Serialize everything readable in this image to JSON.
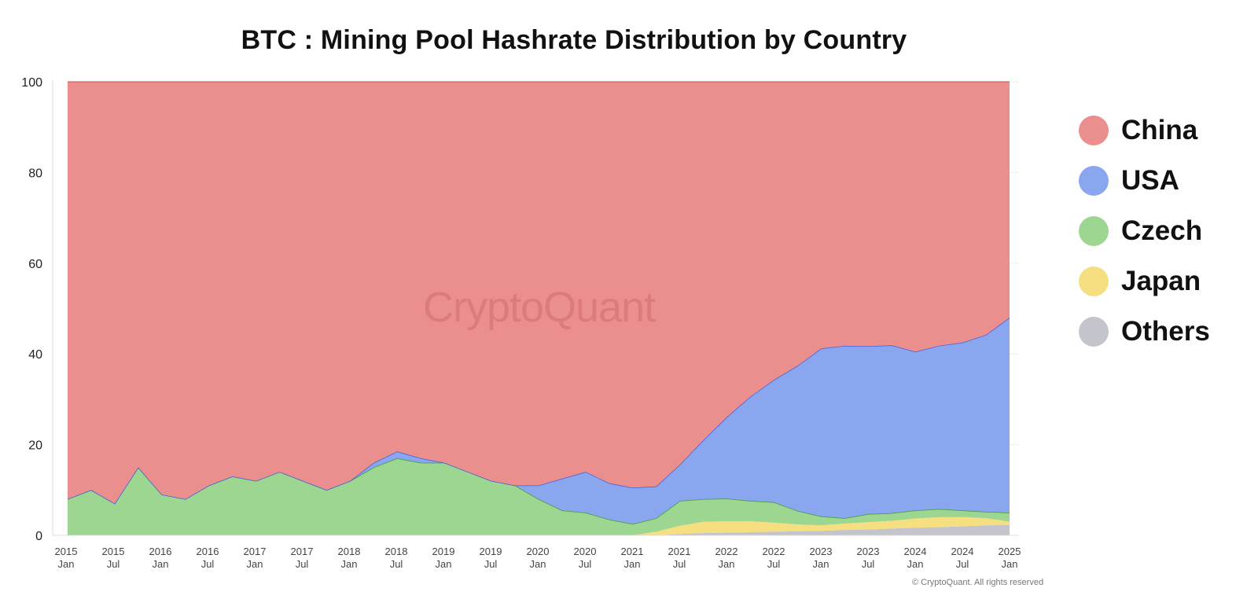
{
  "chart_data": {
    "type": "area",
    "stacked": true,
    "title": "BTC : Mining Pool Hashrate Distribution by Country",
    "xlabel": "",
    "ylabel": "",
    "ylim": [
      0,
      100
    ],
    "yticks": [
      0,
      20,
      40,
      60,
      80,
      100
    ],
    "xlim": [
      "2015-01",
      "2025-01"
    ],
    "grid": true,
    "legend_position": "right",
    "x_ticks": [
      {
        "year": "2015",
        "sub": "Jan"
      },
      {
        "year": "2015",
        "sub": "Jul"
      },
      {
        "year": "2016",
        "sub": "Jan"
      },
      {
        "year": "2016",
        "sub": "Jul"
      },
      {
        "year": "2017",
        "sub": "Jan"
      },
      {
        "year": "2017",
        "sub": "Jul"
      },
      {
        "year": "2018",
        "sub": "Jan"
      },
      {
        "year": "2018",
        "sub": "Jul"
      },
      {
        "year": "2019",
        "sub": "Jan"
      },
      {
        "year": "2019",
        "sub": "Jul"
      },
      {
        "year": "2020",
        "sub": "Jan"
      },
      {
        "year": "2020",
        "sub": "Jul"
      },
      {
        "year": "2021",
        "sub": "Jan"
      },
      {
        "year": "2021",
        "sub": "Jul"
      },
      {
        "year": "2022",
        "sub": "Jan"
      },
      {
        "year": "2022",
        "sub": "Jul"
      },
      {
        "year": "2023",
        "sub": "Jan"
      },
      {
        "year": "2023",
        "sub": "Jul"
      },
      {
        "year": "2024",
        "sub": "Jan"
      },
      {
        "year": "2024",
        "sub": "Jul"
      },
      {
        "year": "2025",
        "sub": "Jan"
      }
    ],
    "x": [
      "2015-01",
      "2015-04",
      "2015-07",
      "2015-10",
      "2016-01",
      "2016-04",
      "2016-07",
      "2016-10",
      "2017-01",
      "2017-04",
      "2017-07",
      "2017-10",
      "2018-01",
      "2018-04",
      "2018-07",
      "2018-10",
      "2019-01",
      "2019-04",
      "2019-07",
      "2019-10",
      "2020-01",
      "2020-04",
      "2020-07",
      "2020-10",
      "2021-01",
      "2021-04",
      "2021-07",
      "2021-10",
      "2022-01",
      "2022-04",
      "2022-07",
      "2022-10",
      "2023-01",
      "2023-04",
      "2023-07",
      "2023-10",
      "2024-01",
      "2024-04",
      "2024-07",
      "2024-10",
      "2025-01"
    ],
    "series": [
      {
        "name": "Others",
        "color": "#c4c4cc",
        "values": [
          0,
          0,
          0,
          0,
          0,
          0,
          0,
          0,
          0,
          0,
          0,
          0,
          0,
          0,
          0,
          0,
          0,
          0,
          0,
          0,
          0,
          0,
          0,
          0,
          0,
          0,
          0.3,
          0.5,
          0.6,
          0.7,
          0.8,
          0.9,
          1.0,
          1.2,
          1.3,
          1.5,
          1.7,
          1.8,
          2.0,
          2.2,
          2.3
        ]
      },
      {
        "name": "Japan",
        "color": "#f5df80",
        "values": [
          0,
          0,
          0,
          0,
          0,
          0,
          0,
          0,
          0,
          0,
          0,
          0,
          0,
          0,
          0,
          0,
          0,
          0,
          0,
          0,
          0,
          0,
          0,
          0,
          0,
          0.8,
          1.8,
          2.5,
          2.5,
          2.4,
          2.0,
          1.5,
          1.2,
          1.4,
          1.6,
          1.7,
          2.0,
          2.2,
          2.0,
          1.6,
          0.7
        ]
      },
      {
        "name": "Czech",
        "color": "#9dd690",
        "values": [
          8,
          10,
          7,
          15,
          9,
          8,
          11,
          13,
          12,
          14,
          12,
          10,
          12,
          15,
          17,
          16,
          16,
          14,
          12,
          11,
          8,
          5.5,
          5,
          3.5,
          2.5,
          3,
          5.5,
          5,
          5,
          4.5,
          4.5,
          3,
          2,
          1.2,
          1.8,
          1.7,
          1.8,
          1.8,
          1.5,
          1.4,
          2.0
        ]
      },
      {
        "name": "USA",
        "color": "#8aa6ee",
        "values": [
          0,
          0,
          0,
          0,
          0,
          0,
          0,
          0,
          0,
          0,
          0,
          0,
          0,
          1,
          1.5,
          1,
          0,
          0,
          0,
          0,
          3,
          7,
          9,
          8,
          8,
          7,
          8,
          13,
          18,
          23,
          27,
          32,
          37,
          38,
          37,
          37,
          35,
          36,
          37,
          39,
          43
        ]
      },
      {
        "name": "China",
        "color": "#eb8f8e",
        "values": [
          92,
          90,
          93,
          85,
          91,
          92,
          89,
          87,
          88,
          86,
          88,
          90,
          88,
          84,
          81.5,
          83,
          84,
          86,
          88,
          89,
          89,
          87.5,
          86,
          88.5,
          89.5,
          89.2,
          84.4,
          79,
          73.9,
          69.4,
          65.7,
          62.6,
          58.8,
          58.2,
          58.3,
          58.1,
          59.5,
          58.2,
          57.5,
          55.8,
          52
        ]
      }
    ]
  },
  "legend": [
    {
      "label": "China",
      "color": "#eb8f8e"
    },
    {
      "label": "USA",
      "color": "#8aa6ee"
    },
    {
      "label": "Czech",
      "color": "#9dd690"
    },
    {
      "label": "Japan",
      "color": "#f5df80"
    },
    {
      "label": "Others",
      "color": "#c4c4cc"
    }
  ],
  "watermark": "CryptoQuant",
  "copyright": "© CryptoQuant. All rights reserved"
}
